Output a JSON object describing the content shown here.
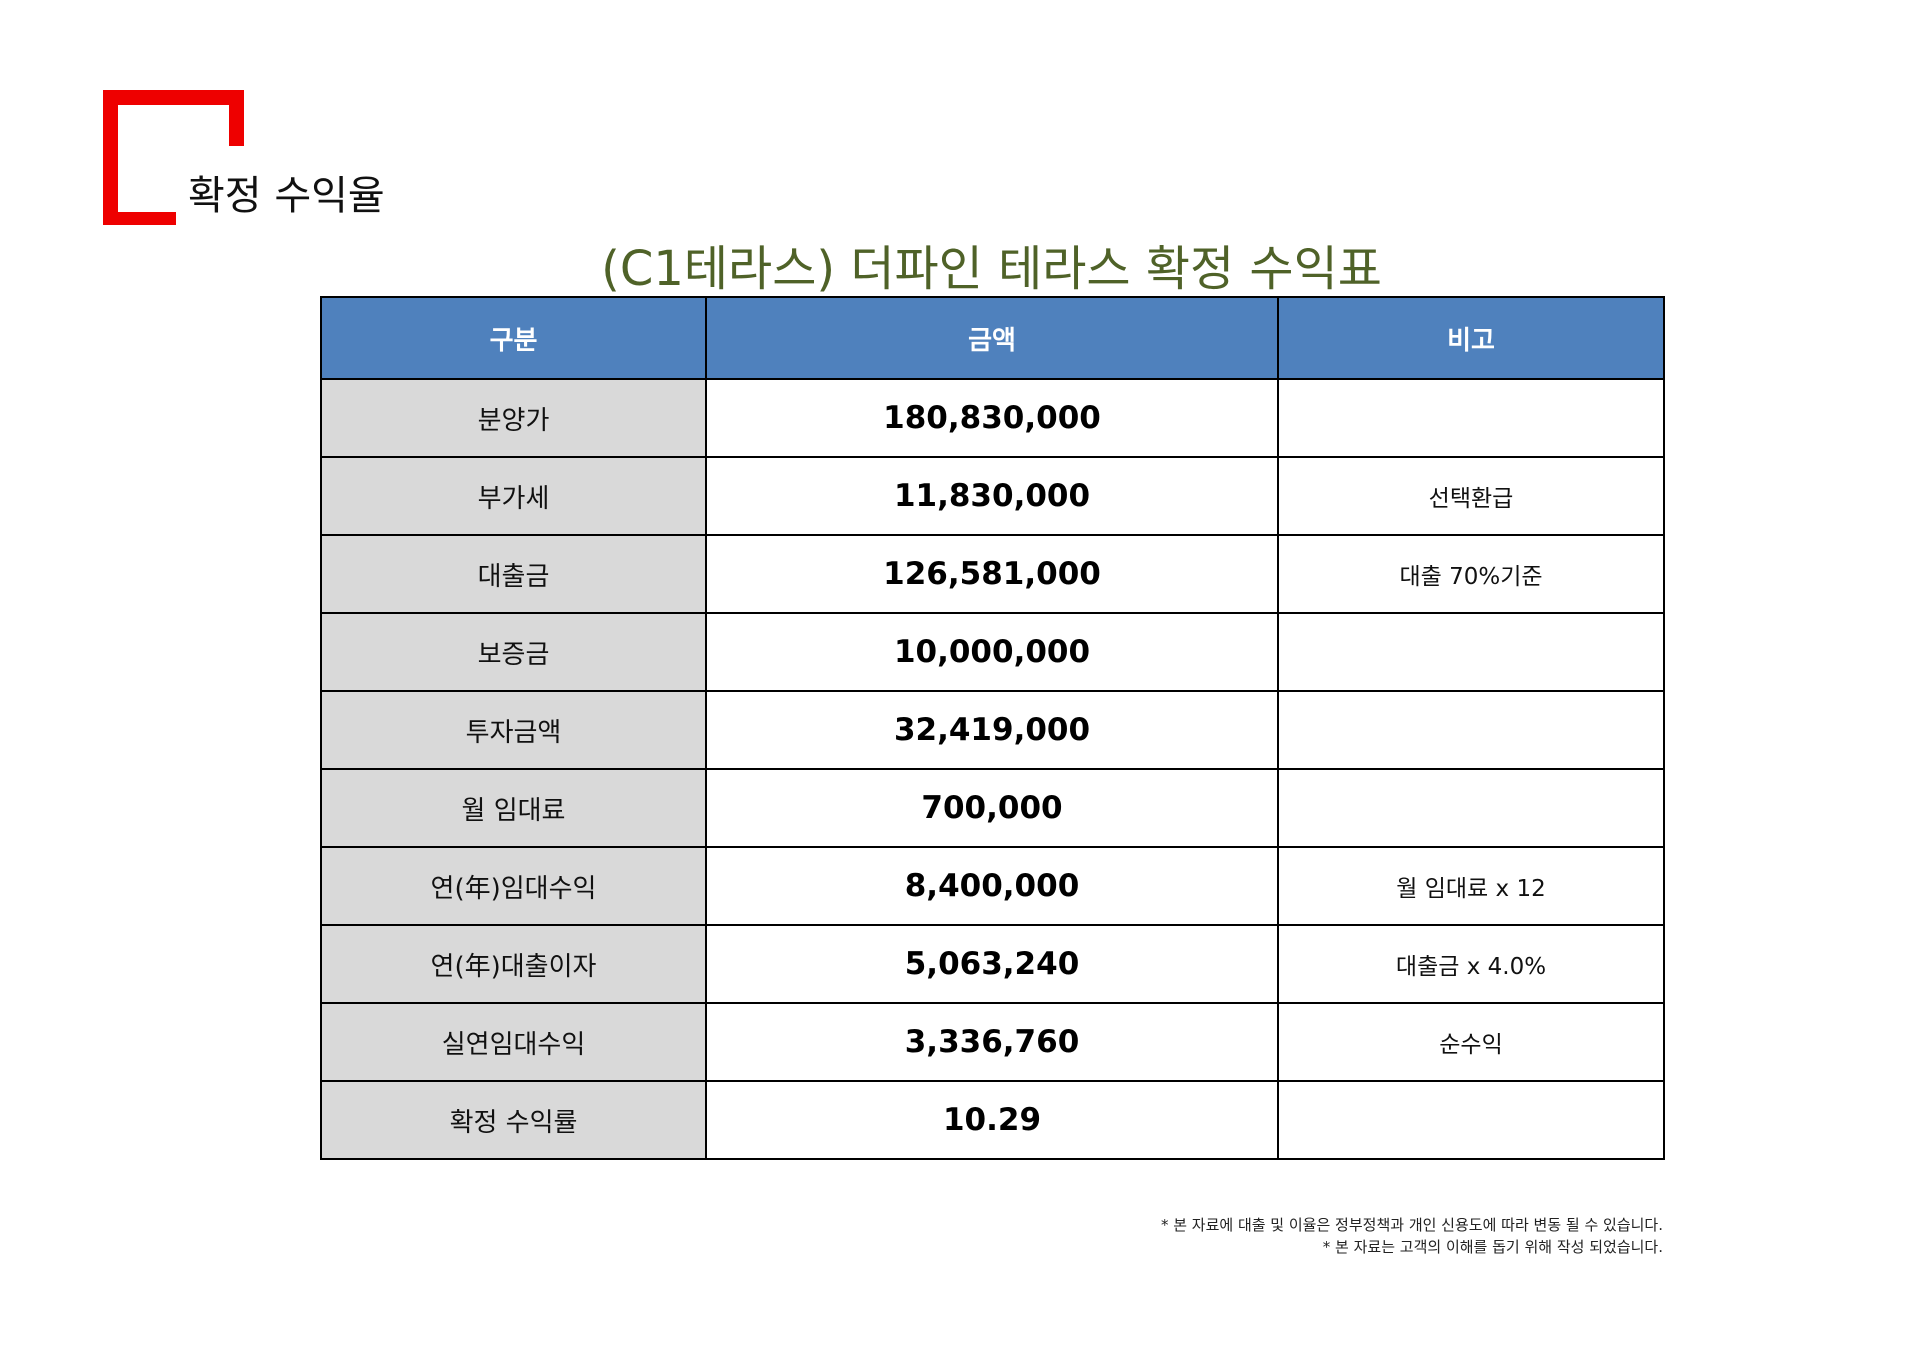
{
  "section_title": "확정 수익율",
  "table_title": "(C1테라스) 더파인 테라스 확정 수익표",
  "accent_color": "#ee0000",
  "title_color": "#4f6228",
  "header_color": "#4f81bd",
  "label_bg_color": "#d9d9d9",
  "table": {
    "headers": [
      "구분",
      "금액",
      "비고"
    ],
    "rows": [
      {
        "label": "분양가",
        "amount": "180,830,000",
        "note": ""
      },
      {
        "label": "부가세",
        "amount": "11,830,000",
        "note": "선택환급"
      },
      {
        "label": "대출금",
        "amount": "126,581,000",
        "note": "대출 70%기준"
      },
      {
        "label": "보증금",
        "amount": "10,000,000",
        "note": ""
      },
      {
        "label": "투자금액",
        "amount": "32,419,000",
        "note": ""
      },
      {
        "label": "월 임대료",
        "amount": "700,000",
        "note": ""
      },
      {
        "label": "연(年)임대수익",
        "amount": "8,400,000",
        "note": "월 임대료 x 12"
      },
      {
        "label": "연(年)대출이자",
        "amount": "5,063,240",
        "note": "대출금 x 4.0%"
      },
      {
        "label": "실연임대수익",
        "amount": "3,336,760",
        "note": "순수익"
      },
      {
        "label": "확정 수익률",
        "amount": "10.29",
        "note": ""
      }
    ]
  },
  "footnotes": [
    "* 본 자료에 대출 및 이율은 정부정책과 개인 신용도에 따라 변동 될 수 있습니다.",
    "* 본 자료는 고객의 이해를 돕기 위해 작성 되었습니다."
  ]
}
